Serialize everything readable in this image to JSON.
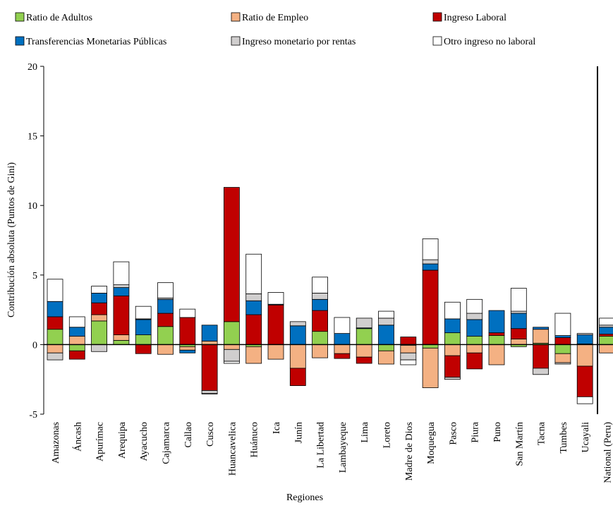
{
  "chart_data": {
    "type": "stacked-bar",
    "categories": [
      "Amazonas",
      "Áncash",
      "Apurímac",
      "Arequipa",
      "Ayacucho",
      "Cajamarca",
      "Callao",
      "Cusco",
      "Huancavelica",
      "Huánuco",
      "Ica",
      "Junín",
      "La Libertad",
      "Lambayeque",
      "Lima",
      "Loreto",
      "Madre de Dios",
      "Moquegua",
      "Pasco",
      "Piura",
      "Puno",
      "San Martín",
      "Tacna",
      "Tumbes",
      "Ucayali",
      "National (Peru)"
    ],
    "series": [
      {
        "name": "Ratio de Adultos",
        "color": "#92d050",
        "values": [
          1.1,
          -0.45,
          1.7,
          0.3,
          0.7,
          1.3,
          -0.15,
          0,
          1.65,
          -0.15,
          0,
          0,
          0.95,
          0,
          1.15,
          -0.45,
          -0.05,
          -0.25,
          0.85,
          0.6,
          0.65,
          -0.15,
          0.1,
          -0.65,
          0.05,
          0.6
        ]
      },
      {
        "name": "Ratio de Empleo",
        "color": "#f4b183",
        "values": [
          -0.6,
          0.6,
          0.45,
          0.4,
          0,
          -0.7,
          -0.25,
          0.25,
          -0.35,
          -1.2,
          -1.05,
          -1.7,
          -0.95,
          -0.65,
          -0.9,
          -0.95,
          -0.55,
          -2.85,
          -0.8,
          -0.6,
          -1.45,
          0.4,
          1.0,
          -0.65,
          -1.55,
          -0.6
        ]
      },
      {
        "name": "Ingreso Laboral",
        "color": "#c00000",
        "values": [
          0.9,
          -0.6,
          0.85,
          2.8,
          -0.65,
          0.95,
          1.95,
          -3.3,
          9.65,
          2.15,
          2.85,
          -1.25,
          1.5,
          -0.35,
          -0.45,
          0,
          0.55,
          5.35,
          -1.55,
          -1.15,
          0.2,
          0.75,
          -1.7,
          0.5,
          -2.2,
          0.15
        ]
      },
      {
        "name": "Transferencias Monetarias Públicas",
        "color": "#0070c0",
        "values": [
          1.1,
          0.65,
          0.7,
          0.6,
          1.1,
          1.0,
          -0.2,
          1.15,
          0,
          1.0,
          0.05,
          1.35,
          0.8,
          0.8,
          0.05,
          1.4,
          0,
          0.45,
          1.0,
          1.2,
          1.6,
          1.1,
          0.15,
          0.15,
          0.65,
          0.5
        ]
      },
      {
        "name": "Ingreso monetario por rentas",
        "color": "#d0cece",
        "values": [
          -0.5,
          0,
          -0.5,
          0.2,
          0.05,
          0.1,
          0,
          -0.2,
          -0.85,
          0.5,
          0,
          0.3,
          0.45,
          0,
          0.7,
          0.5,
          -0.5,
          0.3,
          -0.15,
          0.45,
          0,
          0.15,
          -0.45,
          -0.1,
          0.1,
          0.15
        ]
      },
      {
        "name": "Otro ingreso no laboral",
        "color": "#ffffff",
        "values": [
          1.6,
          0.75,
          0.5,
          1.65,
          0.9,
          1.1,
          0.6,
          -0.05,
          -0.15,
          2.85,
          0.85,
          0,
          1.15,
          1.15,
          0,
          0.5,
          -0.35,
          1.5,
          1.2,
          1.0,
          0,
          1.65,
          0,
          1.6,
          -0.5,
          0.5
        ]
      }
    ],
    "ylim": [
      -5,
      20
    ],
    "yticks": [
      -5,
      0,
      5,
      10,
      15,
      20
    ],
    "ylabel": "Contribución absoluta (Puntos de Gini)",
    "xlabel": "Regiones"
  }
}
